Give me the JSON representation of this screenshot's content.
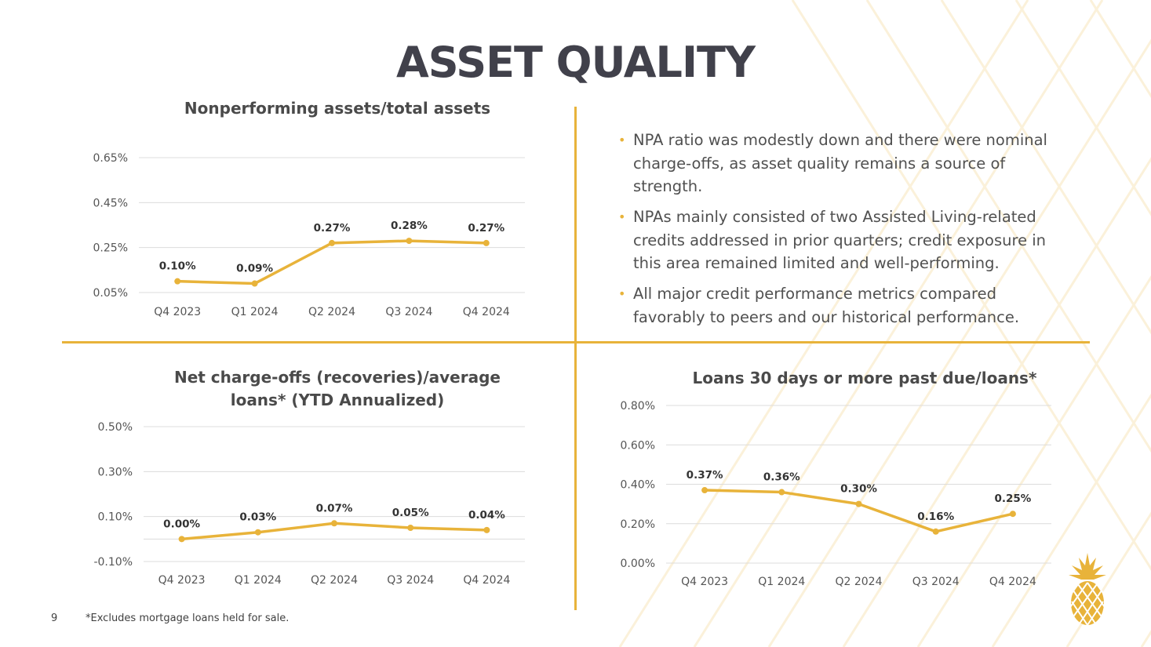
{
  "slide": {
    "title": "ASSET QUALITY",
    "page_number": "9",
    "footnote": "*Excludes mortgage loans held for sale."
  },
  "colors": {
    "accent": "#e8b33a",
    "title": "#41414b",
    "text": "#505050",
    "grid": "#dcdcdc"
  },
  "bullets": [
    "NPA ratio was modestly down and there were nominal charge-offs, as asset quality remains a source of strength.",
    "NPAs mainly consisted of two Assisted Living-related credits addressed in prior quarters; credit exposure in this area remained limited and well-performing.",
    "All major credit performance metrics compared favorably to peers and our historical performance."
  ],
  "chart_data": [
    {
      "id": "npa",
      "type": "line",
      "title": "Nonperforming assets/total assets",
      "categories": [
        "Q4 2023",
        "Q1 2024",
        "Q2 2024",
        "Q3 2024",
        "Q4 2024"
      ],
      "values": [
        0.1,
        0.09,
        0.27,
        0.28,
        0.27
      ],
      "data_labels": [
        "0.10%",
        "0.09%",
        "0.27%",
        "0.28%",
        "0.27%"
      ],
      "yticks": [
        0.05,
        0.25,
        0.45,
        0.65
      ],
      "ytick_labels": [
        "0.05%",
        "0.25%",
        "0.45%",
        "0.65%"
      ],
      "ylim": [
        0.05,
        0.65
      ],
      "xlabel": "",
      "ylabel": "",
      "grid": true
    },
    {
      "id": "nco",
      "type": "line",
      "title": "Net charge-offs (recoveries)/average loans* (YTD Annualized)",
      "title_lines": [
        "Net charge-offs (recoveries)/average",
        "loans* (YTD Annualized)"
      ],
      "categories": [
        "Q4 2023",
        "Q1 2024",
        "Q2 2024",
        "Q3 2024",
        "Q4 2024"
      ],
      "values": [
        0.0,
        0.03,
        0.07,
        0.05,
        0.04
      ],
      "data_labels": [
        "0.00%",
        "0.03%",
        "0.07%",
        "0.05%",
        "0.04%"
      ],
      "yticks": [
        -0.1,
        0.1,
        0.3,
        0.5
      ],
      "ytick_labels": [
        "-0.10%",
        "0.10%",
        "0.30%",
        "0.50%"
      ],
      "ylim": [
        -0.1,
        0.5
      ],
      "xlabel": "",
      "ylabel": "",
      "grid": true
    },
    {
      "id": "pastdue",
      "type": "line",
      "title": "Loans 30 days or more past due/loans*",
      "categories": [
        "Q4 2023",
        "Q1 2024",
        "Q2 2024",
        "Q3 2024",
        "Q4 2024"
      ],
      "values": [
        0.37,
        0.36,
        0.3,
        0.16,
        0.25
      ],
      "data_labels": [
        "0.37%",
        "0.36%",
        "0.30%",
        "0.16%",
        "0.25%"
      ],
      "yticks": [
        0.0,
        0.2,
        0.4,
        0.6,
        0.8
      ],
      "ytick_labels": [
        "0.00%",
        "0.20%",
        "0.40%",
        "0.60%",
        "0.80%"
      ],
      "ylim": [
        0.0,
        0.8
      ],
      "xlabel": "",
      "ylabel": "",
      "grid": true
    }
  ]
}
